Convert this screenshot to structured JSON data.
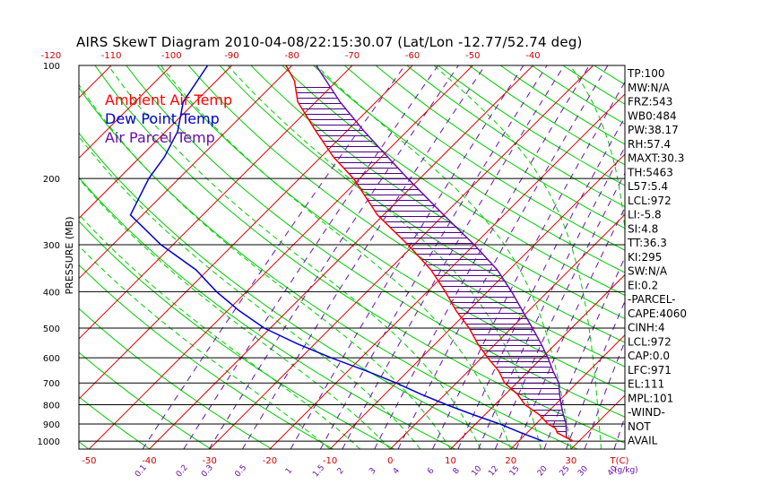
{
  "chart_data": {
    "type": "skewt",
    "title": "AIRS SkewT Diagram 2010-04-08/22:15:30.07 (Lat/Lon -12.77/52.74 deg)",
    "ylabel": "PRESSURE (MB)",
    "pressure_ticks": [
      100,
      200,
      300,
      400,
      500,
      600,
      700,
      800,
      900,
      1000
    ],
    "top_temp_ticks": [
      "-120",
      "-110",
      "-100",
      "-90",
      "-80",
      "-70",
      "-60",
      "-50",
      "-40"
    ],
    "bottom_temp_ticks": [
      "-50",
      "-40",
      "-30",
      "-20",
      "-10",
      "0",
      "10",
      "20",
      "30"
    ],
    "bottom_temp_unit": "T(C)",
    "mixing_ratio_ticks": [
      "0.1",
      "0.2",
      "0.3",
      "0.5",
      "1",
      "1.5",
      "2",
      "3",
      "4",
      "6",
      "8",
      "10",
      "12",
      "15",
      "20",
      "25",
      "30",
      "40"
    ],
    "mixing_ratio_unit": "(g/kg)",
    "legend": [
      {
        "label": "Ambient Air Temp",
        "color": "#ff0000"
      },
      {
        "label": "Dew Point Temp",
        "color": "#0000cc"
      },
      {
        "label": "Air Parcel Temp",
        "color": "#6a0dad"
      }
    ],
    "series": [
      {
        "name": "Ambient Air Temp",
        "color": "#ff0000",
        "points": [
          [
            1000,
            29
          ],
          [
            950,
            25
          ],
          [
            925,
            24
          ],
          [
            900,
            22
          ],
          [
            850,
            19
          ],
          [
            800,
            15
          ],
          [
            750,
            12
          ],
          [
            700,
            8
          ],
          [
            650,
            5
          ],
          [
            600,
            1
          ],
          [
            550,
            -3
          ],
          [
            500,
            -7
          ],
          [
            450,
            -12
          ],
          [
            400,
            -17
          ],
          [
            350,
            -23
          ],
          [
            300,
            -31
          ],
          [
            250,
            -41
          ],
          [
            200,
            -51
          ],
          [
            175,
            -58
          ],
          [
            150,
            -65
          ],
          [
            125,
            -73
          ],
          [
            110,
            -77
          ],
          [
            100,
            -81
          ]
        ]
      },
      {
        "name": "Dew Point Temp",
        "color": "#0000cc",
        "points": [
          [
            1000,
            24
          ],
          [
            950,
            19
          ],
          [
            900,
            14
          ],
          [
            850,
            8
          ],
          [
            800,
            2
          ],
          [
            750,
            -4
          ],
          [
            700,
            -10
          ],
          [
            650,
            -17
          ],
          [
            600,
            -25
          ],
          [
            550,
            -33
          ],
          [
            500,
            -41
          ],
          [
            450,
            -48
          ],
          [
            400,
            -55
          ],
          [
            350,
            -62
          ],
          [
            300,
            -72
          ],
          [
            250,
            -82
          ],
          [
            200,
            -85
          ],
          [
            175,
            -86
          ],
          [
            150,
            -88
          ],
          [
            125,
            -92
          ],
          [
            100,
            -94
          ]
        ]
      },
      {
        "name": "Air Parcel Temp",
        "color": "#6a0dad",
        "points": [
          [
            1000,
            29
          ],
          [
            975,
            27.2
          ],
          [
            950,
            26.5
          ],
          [
            900,
            25
          ],
          [
            850,
            23
          ],
          [
            800,
            21
          ],
          [
            750,
            19
          ],
          [
            700,
            17
          ],
          [
            650,
            14
          ],
          [
            600,
            11
          ],
          [
            550,
            7.5
          ],
          [
            500,
            3.5
          ],
          [
            450,
            -1
          ],
          [
            400,
            -6
          ],
          [
            350,
            -12
          ],
          [
            300,
            -20
          ],
          [
            250,
            -30
          ],
          [
            200,
            -42
          ],
          [
            175,
            -49
          ],
          [
            150,
            -57
          ],
          [
            125,
            -66
          ],
          [
            100,
            -76
          ]
        ]
      }
    ],
    "wind": "N/A"
  },
  "indices": [
    "TP:100",
    "MW:N/A",
    "FRZ:543",
    "WB0:484",
    "PW:38.17",
    "RH:57.4",
    "MAXT:30.3",
    "TH:5463",
    "L57:5.4",
    "LCL:972",
    "LI:-5.8",
    "SI:4.8",
    "TT:36.3",
    "KI:295",
    "SW:N/A",
    "EI:0.2",
    "-PARCEL-",
    "CAPE:4060",
    "CINH:4",
    "LCL:972",
    "CAP:0.0",
    "LFC:971",
    "EL:111",
    "MPL:101",
    "-WIND-",
    "NOT",
    "AVAIL"
  ]
}
